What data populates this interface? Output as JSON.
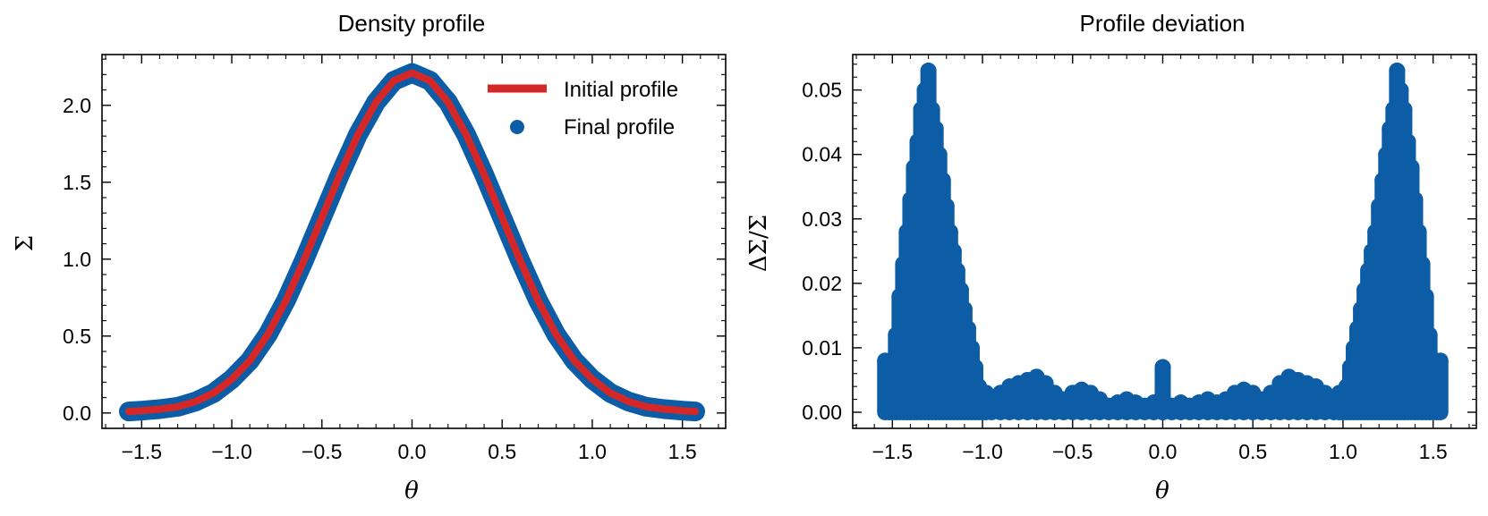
{
  "colors": {
    "initial": "#d62728",
    "final": "#0c5da5",
    "axis": "#000000"
  },
  "chart_data": [
    {
      "type": "line",
      "title": "Density profile",
      "xlabel": "θ",
      "ylabel": "Σ",
      "xlim": [
        -1.72,
        1.74
      ],
      "ylim": [
        -0.1,
        2.33
      ],
      "xticks": [
        -1.5,
        -1.0,
        -0.5,
        0.0,
        0.5,
        1.0,
        1.5
      ],
      "xtick_labels": [
        "−1.5",
        "−1.0",
        "−0.5",
        "0.0",
        "0.5",
        "1.0",
        "1.5"
      ],
      "yticks": [
        0.0,
        0.5,
        1.0,
        1.5,
        2.0
      ],
      "ytick_labels": [
        "0.0",
        "0.5",
        "1.0",
        "1.5",
        "2.0"
      ],
      "legend": {
        "position": "top-right",
        "entries": [
          {
            "label": "Initial profile",
            "kind": "line",
            "series": "initial"
          },
          {
            "label": "Final profile",
            "kind": "marker",
            "series": "final"
          }
        ]
      },
      "series": [
        {
          "name": "Final profile",
          "key": "final",
          "style": "scatter",
          "x": [
            -1.571,
            -1.5,
            -1.4,
            -1.3,
            -1.2,
            -1.1,
            -1.0,
            -0.9,
            -0.8,
            -0.7,
            -0.6,
            -0.5,
            -0.4,
            -0.3,
            -0.2,
            -0.1,
            0.0,
            0.1,
            0.2,
            0.3,
            0.4,
            0.5,
            0.6,
            0.7,
            0.8,
            0.9,
            1.0,
            1.1,
            1.2,
            1.3,
            1.4,
            1.5,
            1.571
          ],
          "y": [
            0.01,
            0.015,
            0.025,
            0.04,
            0.075,
            0.13,
            0.22,
            0.34,
            0.51,
            0.73,
            0.99,
            1.27,
            1.55,
            1.81,
            2.02,
            2.16,
            2.21,
            2.16,
            2.02,
            1.81,
            1.55,
            1.27,
            0.99,
            0.73,
            0.51,
            0.34,
            0.22,
            0.13,
            0.075,
            0.04,
            0.025,
            0.015,
            0.01
          ]
        },
        {
          "name": "Initial profile",
          "key": "initial",
          "style": "line",
          "x": [
            -1.571,
            -1.5,
            -1.4,
            -1.3,
            -1.2,
            -1.1,
            -1.0,
            -0.9,
            -0.8,
            -0.7,
            -0.6,
            -0.5,
            -0.4,
            -0.3,
            -0.2,
            -0.1,
            0.0,
            0.1,
            0.2,
            0.3,
            0.4,
            0.5,
            0.6,
            0.7,
            0.8,
            0.9,
            1.0,
            1.1,
            1.2,
            1.3,
            1.4,
            1.5,
            1.571
          ],
          "y": [
            0.01,
            0.015,
            0.025,
            0.04,
            0.075,
            0.13,
            0.22,
            0.34,
            0.51,
            0.73,
            0.99,
            1.27,
            1.55,
            1.81,
            2.02,
            2.16,
            2.21,
            2.16,
            2.02,
            1.81,
            1.55,
            1.27,
            0.99,
            0.73,
            0.51,
            0.34,
            0.22,
            0.13,
            0.075,
            0.04,
            0.025,
            0.015,
            0.01
          ]
        }
      ]
    },
    {
      "type": "scatter",
      "title": "Profile deviation",
      "xlabel": "θ",
      "ylabel": "ΔΣ/Σ",
      "xlim": [
        -1.72,
        1.74
      ],
      "ylim": [
        -0.0025,
        0.0555
      ],
      "xticks": [
        -1.5,
        -1.0,
        -0.5,
        0.0,
        0.5,
        1.0,
        1.5
      ],
      "xtick_labels": [
        "−1.5",
        "−1.0",
        "−0.5",
        "0.0",
        "0.5",
        "1.0",
        "1.5"
      ],
      "yticks": [
        0.0,
        0.01,
        0.02,
        0.03,
        0.04,
        0.05
      ],
      "ytick_labels": [
        "0.00",
        "0.01",
        "0.02",
        "0.03",
        "0.04",
        "0.05"
      ],
      "series": [
        {
          "name": "Profile deviation",
          "key": "final",
          "style": "scatter",
          "x": [
            -1.54,
            -1.52,
            -1.5,
            -1.48,
            -1.46,
            -1.44,
            -1.42,
            -1.4,
            -1.38,
            -1.36,
            -1.34,
            -1.32,
            -1.3,
            -1.28,
            -1.26,
            -1.24,
            -1.22,
            -1.2,
            -1.18,
            -1.16,
            -1.14,
            -1.12,
            -1.1,
            -1.08,
            -1.06,
            -1.04,
            -1.02,
            -1.0,
            -0.98,
            -0.95,
            -0.9,
            -0.85,
            -0.8,
            -0.75,
            -0.7,
            -0.65,
            -0.6,
            -0.55,
            -0.5,
            -0.45,
            -0.4,
            -0.35,
            -0.3,
            -0.25,
            -0.2,
            -0.15,
            -0.1,
            -0.05,
            0.0,
            0.0,
            0.0,
            0.05,
            0.1,
            0.15,
            0.2,
            0.25,
            0.3,
            0.35,
            0.4,
            0.45,
            0.5,
            0.55,
            0.6,
            0.65,
            0.7,
            0.75,
            0.8,
            0.85,
            0.9,
            0.95,
            0.98,
            1.0,
            1.02,
            1.04,
            1.06,
            1.08,
            1.1,
            1.12,
            1.14,
            1.16,
            1.18,
            1.2,
            1.22,
            1.24,
            1.26,
            1.28,
            1.3,
            1.32,
            1.34,
            1.36,
            1.38,
            1.4,
            1.42,
            1.44,
            1.46,
            1.48,
            1.5,
            1.52,
            1.54
          ],
          "y": [
            0.008,
            0.003,
            0.006,
            0.012,
            0.018,
            0.023,
            0.028,
            0.033,
            0.038,
            0.042,
            0.047,
            0.05,
            0.053,
            0.047,
            0.044,
            0.04,
            0.036,
            0.032,
            0.028,
            0.025,
            0.022,
            0.019,
            0.016,
            0.013,
            0.01,
            0.007,
            0.004,
            0.002,
            0.003,
            0.002,
            0.003,
            0.004,
            0.0045,
            0.005,
            0.0055,
            0.0045,
            0.003,
            0.002,
            0.003,
            0.0035,
            0.003,
            0.002,
            0.001,
            0.0015,
            0.002,
            0.0015,
            0.001,
            0.0015,
            0.007,
            0.004,
            0.002,
            0.001,
            0.0015,
            0.001,
            0.0015,
            0.002,
            0.0015,
            0.002,
            0.003,
            0.0035,
            0.003,
            0.002,
            0.003,
            0.0045,
            0.0055,
            0.005,
            0.0045,
            0.004,
            0.003,
            0.002,
            0.003,
            0.002,
            0.004,
            0.007,
            0.01,
            0.013,
            0.016,
            0.019,
            0.022,
            0.025,
            0.028,
            0.032,
            0.036,
            0.04,
            0.044,
            0.047,
            0.053,
            0.05,
            0.047,
            0.042,
            0.038,
            0.033,
            0.028,
            0.023,
            0.018,
            0.012,
            0.006,
            0.003,
            0.008
          ]
        }
      ]
    }
  ]
}
